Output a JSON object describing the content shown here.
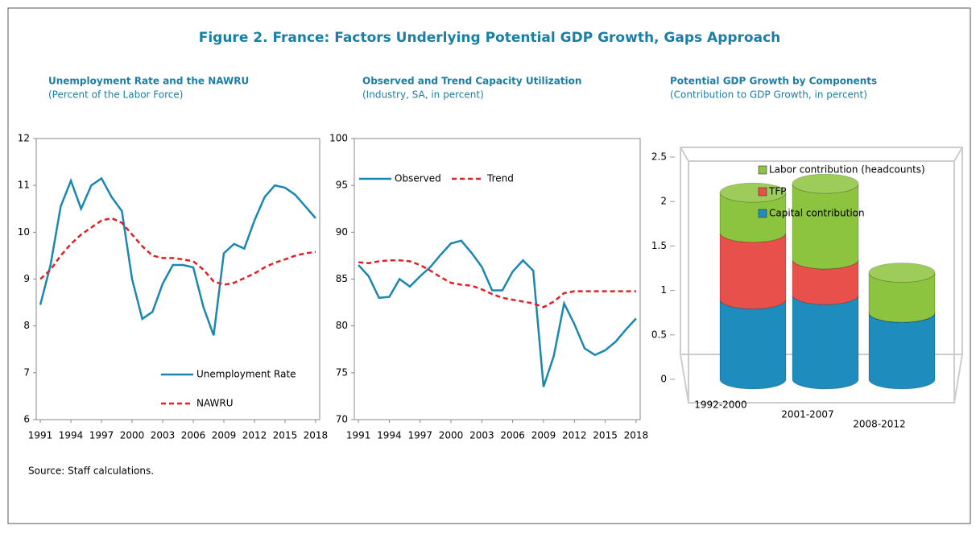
{
  "title": "Figure 2. France: Factors Underlying Potential GDP Growth, Gaps Approach",
  "source": "Source: Staff calculations.",
  "chart_data": [
    {
      "type": "line",
      "title": "Unemployment Rate and the NAWRU",
      "subtitle": "(Percent of the Labor Force)",
      "x": [
        1991,
        1992,
        1993,
        1994,
        1995,
        1996,
        1997,
        1998,
        1999,
        2000,
        2001,
        2002,
        2003,
        2004,
        2005,
        2006,
        2007,
        2008,
        2009,
        2010,
        2011,
        2012,
        2013,
        2014,
        2015,
        2016,
        2017,
        2018
      ],
      "xlim": [
        1990.6,
        2018.4
      ],
      "xticks": [
        1991,
        1994,
        1997,
        2000,
        2003,
        2006,
        2009,
        2012,
        2015,
        2018
      ],
      "ylim": [
        6,
        12
      ],
      "yticks": [
        6,
        7,
        8,
        9,
        10,
        11,
        12
      ],
      "legend": "lower right",
      "series": [
        {
          "name": "Unemployment Rate",
          "color": "#1a87b0",
          "style": "solid",
          "values": [
            8.45,
            9.3,
            10.55,
            11.1,
            10.5,
            11.0,
            11.15,
            10.75,
            10.45,
            9.0,
            8.15,
            8.3,
            8.9,
            9.3,
            9.3,
            9.25,
            8.4,
            7.8,
            9.55,
            9.75,
            9.65,
            10.25,
            10.75,
            11.0,
            10.95,
            10.8,
            10.55,
            10.3
          ]
        },
        {
          "name": "NAWRU",
          "color": "#e31e24",
          "style": "dashed",
          "values": [
            9.0,
            9.2,
            9.5,
            9.75,
            9.95,
            10.1,
            10.25,
            10.3,
            10.2,
            9.95,
            9.7,
            9.5,
            9.45,
            9.45,
            9.42,
            9.38,
            9.2,
            8.95,
            8.88,
            8.92,
            9.02,
            9.12,
            9.25,
            9.35,
            9.42,
            9.5,
            9.55,
            9.58
          ]
        }
      ]
    },
    {
      "type": "line",
      "title": "Observed and Trend Capacity Utilization",
      "subtitle": "(Industry, SA, in percent)",
      "x": [
        1991,
        1992,
        1993,
        1994,
        1995,
        1996,
        1997,
        1998,
        1999,
        2000,
        2001,
        2002,
        2003,
        2004,
        2005,
        2006,
        2007,
        2008,
        2009,
        2010,
        2011,
        2012,
        2013,
        2014,
        2015,
        2016,
        2017,
        2018
      ],
      "xlim": [
        1990.6,
        2018.4
      ],
      "xticks": [
        1991,
        1994,
        1997,
        2000,
        2003,
        2006,
        2009,
        2012,
        2015,
        2018
      ],
      "ylim": [
        70,
        100
      ],
      "yticks": [
        70,
        75,
        80,
        85,
        90,
        95,
        100
      ],
      "legend": "upper left",
      "series": [
        {
          "name": "Observed",
          "color": "#1a87b0",
          "style": "solid",
          "values": [
            86.5,
            85.3,
            83.0,
            83.1,
            85.0,
            84.2,
            85.3,
            86.3,
            87.6,
            88.8,
            89.1,
            87.8,
            86.3,
            83.8,
            83.8,
            85.8,
            87.0,
            85.9,
            73.5,
            76.8,
            82.4,
            80.2,
            77.6,
            76.9,
            77.4,
            78.3,
            79.6,
            80.8
          ]
        },
        {
          "name": "Trend",
          "color": "#e31e24",
          "style": "dashed",
          "values": [
            86.8,
            86.7,
            86.9,
            87.0,
            87.0,
            86.9,
            86.5,
            85.9,
            85.2,
            84.6,
            84.4,
            84.3,
            83.9,
            83.4,
            83.0,
            82.8,
            82.6,
            82.4,
            82.0,
            82.6,
            83.5,
            83.7,
            83.7,
            83.7,
            83.7,
            83.7,
            83.7,
            83.7
          ]
        }
      ]
    },
    {
      "type": "stacked-cylinder",
      "title": "Potential GDP Growth by Components",
      "subtitle": "(Contribution to GDP Growth, in percent)",
      "categories": [
        "1992-2000",
        "2001-2007",
        "2008-2012"
      ],
      "ylim": [
        0,
        2.5
      ],
      "yticks": [
        0,
        0.5,
        1,
        1.5,
        2,
        2.5
      ],
      "legend": "upper left",
      "series": [
        {
          "name": "Capital contribution",
          "color": "#1e8dbd",
          "values": [
            0.9,
            0.95,
            0.75
          ]
        },
        {
          "name": "TFP",
          "color": "#e8504c",
          "values": [
            0.75,
            0.4,
            0
          ]
        },
        {
          "name": "Labor contribution (headcounts)",
          "color": "#8cc43f",
          "values": [
            0.45,
            0.85,
            0.45
          ]
        }
      ]
    }
  ]
}
